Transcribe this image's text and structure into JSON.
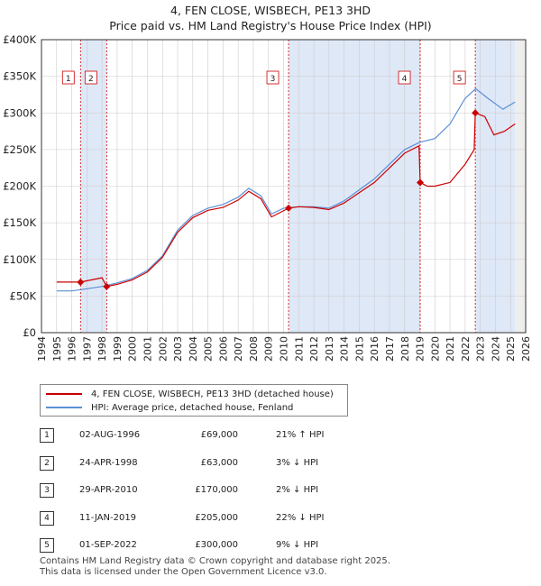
{
  "title": "4, FEN CLOSE, WISBECH, PE13 3HD",
  "subtitle": "Price paid vs. HM Land Registry's House Price Index (HPI)",
  "colors": {
    "property": "#cc0000",
    "hpi": "#5b8fd6",
    "shade": "#dfe8f7",
    "grid": "#cccccc"
  },
  "legend": {
    "property_label": "4, FEN CLOSE, WISBECH, PE13 3HD (detached house)",
    "hpi_label": "HPI: Average price, detached house, Fenland"
  },
  "transactions": [
    {
      "num": "1",
      "date": "02-AUG-1996",
      "price": "£69,000",
      "hpi": "21% ↑ HPI"
    },
    {
      "num": "2",
      "date": "24-APR-1998",
      "price": "£63,000",
      "hpi": "3% ↓ HPI"
    },
    {
      "num": "3",
      "date": "29-APR-2010",
      "price": "£170,000",
      "hpi": "2% ↓ HPI"
    },
    {
      "num": "4",
      "date": "11-JAN-2019",
      "price": "£205,000",
      "hpi": "22% ↓ HPI"
    },
    {
      "num": "5",
      "date": "01-SEP-2022",
      "price": "£300,000",
      "hpi": "9% ↓ HPI"
    }
  ],
  "footer": {
    "line1": "Contains HM Land Registry data © Crown copyright and database right 2025.",
    "line2": "This data is licensed under the Open Government Licence v3.0."
  },
  "chart_data": {
    "type": "line",
    "xlim": [
      1994,
      2026
    ],
    "ylim": [
      0,
      400000
    ],
    "x_ticks": [
      1994,
      1995,
      1996,
      1997,
      1998,
      1999,
      2000,
      2001,
      2002,
      2003,
      2004,
      2005,
      2006,
      2007,
      2008,
      2009,
      2010,
      2011,
      2012,
      2013,
      2014,
      2015,
      2016,
      2017,
      2018,
      2019,
      2020,
      2021,
      2022,
      2023,
      2024,
      2025,
      2026
    ],
    "y_ticks": [
      {
        "value": 0,
        "label": "£0"
      },
      {
        "value": 50000,
        "label": "£50K"
      },
      {
        "value": 100000,
        "label": "£100K"
      },
      {
        "value": 150000,
        "label": "£150K"
      },
      {
        "value": 200000,
        "label": "£200K"
      },
      {
        "value": 250000,
        "label": "£250K"
      },
      {
        "value": 300000,
        "label": "£300K"
      },
      {
        "value": 350000,
        "label": "£350K"
      },
      {
        "value": 400000,
        "label": "£400K"
      }
    ],
    "data_start": 1995.0,
    "data_end": 2025.3,
    "shaded_ranges": [
      [
        1996.58,
        1998.31
      ],
      [
        2010.33,
        2019.03
      ],
      [
        2022.67,
        2025.3
      ]
    ],
    "sales": [
      {
        "label": "1",
        "x": 1996.58,
        "y": 69000
      },
      {
        "label": "2",
        "x": 1998.31,
        "y": 63000
      },
      {
        "label": "3",
        "x": 2010.33,
        "y": 170000
      },
      {
        "label": "4",
        "x": 2019.03,
        "y": 205000
      },
      {
        "label": "5",
        "x": 2022.67,
        "y": 300000
      }
    ],
    "series": [
      {
        "name": "HPI: Average price, detached house, Fenland",
        "points": [
          [
            1995.0,
            57000
          ],
          [
            1996.0,
            57000
          ],
          [
            1997.0,
            60000
          ],
          [
            1998.0,
            63000
          ],
          [
            1999.0,
            68000
          ],
          [
            2000.0,
            74000
          ],
          [
            2001.0,
            85000
          ],
          [
            2002.0,
            105000
          ],
          [
            2003.0,
            140000
          ],
          [
            2004.0,
            160000
          ],
          [
            2005.0,
            170000
          ],
          [
            2006.0,
            175000
          ],
          [
            2007.0,
            185000
          ],
          [
            2007.7,
            197000
          ],
          [
            2008.5,
            187000
          ],
          [
            2009.2,
            162000
          ],
          [
            2010.0,
            170000
          ],
          [
            2011.0,
            172000
          ],
          [
            2012.0,
            172000
          ],
          [
            2013.0,
            170000
          ],
          [
            2014.0,
            180000
          ],
          [
            2015.0,
            195000
          ],
          [
            2016.0,
            210000
          ],
          [
            2017.0,
            230000
          ],
          [
            2018.0,
            250000
          ],
          [
            2019.0,
            260000
          ],
          [
            2020.0,
            265000
          ],
          [
            2021.0,
            285000
          ],
          [
            2022.0,
            320000
          ],
          [
            2022.7,
            333000
          ],
          [
            2023.5,
            320000
          ],
          [
            2024.5,
            305000
          ],
          [
            2025.3,
            315000
          ]
        ]
      },
      {
        "name": "4, FEN CLOSE, WISBECH, PE13 3HD (detached house)",
        "points": [
          [
            1995.0,
            69000
          ],
          [
            1996.58,
            69000
          ],
          [
            1998.0,
            75000
          ],
          [
            1998.31,
            63000
          ],
          [
            1999.0,
            66000
          ],
          [
            2000.0,
            72000
          ],
          [
            2001.0,
            83000
          ],
          [
            2002.0,
            103000
          ],
          [
            2003.0,
            137000
          ],
          [
            2004.0,
            157000
          ],
          [
            2005.0,
            167000
          ],
          [
            2006.0,
            171000
          ],
          [
            2007.0,
            181000
          ],
          [
            2007.7,
            193000
          ],
          [
            2008.5,
            183000
          ],
          [
            2009.2,
            158000
          ],
          [
            2010.33,
            170000
          ],
          [
            2011.0,
            172000
          ],
          [
            2012.0,
            171000
          ],
          [
            2013.0,
            168000
          ],
          [
            2014.0,
            177000
          ],
          [
            2015.0,
            191000
          ],
          [
            2016.0,
            205000
          ],
          [
            2017.0,
            225000
          ],
          [
            2018.0,
            245000
          ],
          [
            2018.95,
            255000
          ],
          [
            2019.03,
            205000
          ],
          [
            2019.5,
            200000
          ],
          [
            2020.0,
            200000
          ],
          [
            2021.0,
            205000
          ],
          [
            2022.0,
            230000
          ],
          [
            2022.6,
            250000
          ],
          [
            2022.67,
            300000
          ],
          [
            2023.3,
            295000
          ],
          [
            2023.9,
            270000
          ],
          [
            2024.6,
            275000
          ],
          [
            2025.3,
            285000
          ]
        ]
      }
    ]
  }
}
